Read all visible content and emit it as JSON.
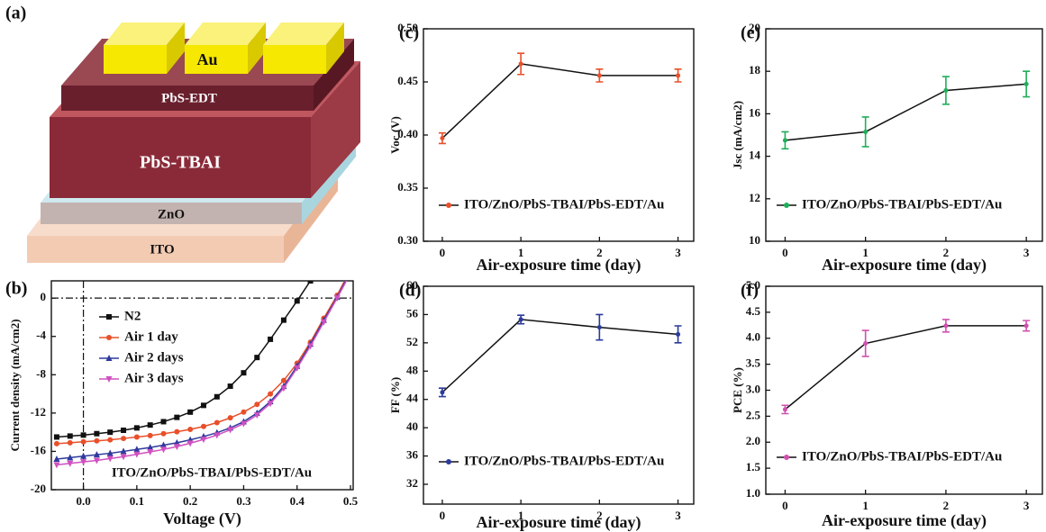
{
  "panel_a": {
    "label": "(a)",
    "layers": [
      "Au",
      "PbS-EDT",
      "PbS-TBAI",
      "ZnO",
      "ITO"
    ]
  },
  "chart_data": [
    {
      "type": "line",
      "label": "(b)",
      "xlabel": "Voltage (V)",
      "ylabel": "Current density (mA/cm2)",
      "annotation": "ITO/ZnO/PbS-TBAI/PbS-EDT/Au",
      "x": [
        -0.05,
        -0.025,
        0,
        0.025,
        0.05,
        0.075,
        0.1,
        0.125,
        0.15,
        0.175,
        0.2,
        0.225,
        0.25,
        0.275,
        0.3,
        0.325,
        0.35,
        0.375,
        0.4,
        0.425,
        0.45,
        0.475,
        0.5
      ],
      "xlim": [
        -0.06,
        0.505
      ],
      "xticks": [
        {
          "value": 0,
          "label": "0.0"
        },
        0.1,
        0.2,
        0.3,
        0.4,
        0.5
      ],
      "ylim": [
        -20,
        1.8
      ],
      "yticks": [
        0,
        -4,
        -8,
        -12,
        -16,
        -20
      ],
      "series": [
        {
          "name": "N2",
          "color": "#111111",
          "marker": "square",
          "values": [
            -14.5,
            -14.4,
            -14.3,
            -14.15,
            -14.0,
            -13.8,
            -13.55,
            -13.25,
            -12.9,
            -12.45,
            -11.9,
            -11.2,
            -10.3,
            -9.2,
            -7.8,
            -6.2,
            -4.3,
            -2.3,
            -0.3,
            1.8,
            null,
            null,
            null
          ]
        },
        {
          "name": "Air 1 day",
          "color": "#e8502a",
          "marker": "circle",
          "values": [
            -15.2,
            -15.1,
            -15.0,
            -14.9,
            -14.8,
            -14.65,
            -14.5,
            -14.35,
            -14.15,
            -13.95,
            -13.7,
            -13.4,
            -13.0,
            -12.5,
            -11.9,
            -11.1,
            -10.0,
            -8.6,
            -6.8,
            -4.6,
            -2.1,
            0.3,
            3.0
          ]
        },
        {
          "name": "Air 2 days",
          "color": "#2f3a9c",
          "marker": "triangle-up",
          "values": [
            -16.8,
            -16.65,
            -16.5,
            -16.35,
            -16.2,
            -16.0,
            -15.8,
            -15.6,
            -15.35,
            -15.1,
            -14.8,
            -14.45,
            -14.05,
            -13.55,
            -12.9,
            -12.0,
            -10.8,
            -9.2,
            -7.1,
            -4.8,
            -2.3,
            0.1,
            2.8
          ]
        },
        {
          "name": "Air 3 days",
          "color": "#d050c0",
          "marker": "triangle-down",
          "values": [
            -17.4,
            -17.25,
            -17.1,
            -16.95,
            -16.75,
            -16.55,
            -16.3,
            -16.05,
            -15.8,
            -15.5,
            -15.15,
            -14.75,
            -14.3,
            -13.75,
            -13.1,
            -12.2,
            -11.0,
            -9.4,
            -7.3,
            -5.0,
            -2.5,
            0.0,
            2.6
          ]
        }
      ]
    },
    {
      "type": "line",
      "label": "(c)",
      "xlabel": "Air-exposure time (day)",
      "ylabel": "Voc (V)",
      "x": [
        0,
        1,
        2,
        3
      ],
      "xlim": [
        -0.24,
        3.2
      ],
      "xticks": [
        0,
        1,
        2,
        3
      ],
      "ylim": [
        0.3,
        0.5
      ],
      "yticks": [
        {
          "value": 0.3,
          "label": "0.30"
        },
        0.35,
        {
          "value": 0.4,
          "label": "0.40"
        },
        0.45,
        {
          "value": 0.5,
          "label": "0.50"
        }
      ],
      "series": [
        {
          "name": "ITO/ZnO/PbS-TBAI/PbS-EDT/Au",
          "color": "#e8502a",
          "values": [
            0.397,
            0.467,
            0.456,
            0.456
          ],
          "errors": [
            0.005,
            0.01,
            0.006,
            0.006
          ]
        }
      ]
    },
    {
      "type": "line",
      "label": "(d)",
      "xlabel": "Air-exposure time (day)",
      "ylabel": "FF (%)",
      "x": [
        0,
        1,
        2,
        3
      ],
      "xlim": [
        -0.24,
        3.2
      ],
      "xticks": [
        0,
        1,
        2,
        3
      ],
      "ylim": [
        29.2,
        60
      ],
      "yticks": [
        32,
        36,
        40,
        44,
        48,
        52,
        56,
        60
      ],
      "series": [
        {
          "name": "ITO/ZnO/PbS-TBAI/PbS-EDT/Au",
          "color": "#2b3a9b",
          "values": [
            45.0,
            55.3,
            54.2,
            53.2
          ],
          "errors": [
            0.6,
            0.6,
            1.8,
            1.2
          ]
        }
      ]
    },
    {
      "type": "line",
      "label": "(e)",
      "xlabel": "Air-exposure time (day)",
      "ylabel": "Jsc (mA/cm2)",
      "x": [
        0,
        1,
        2,
        3
      ],
      "xlim": [
        -0.24,
        3.2
      ],
      "xticks": [
        0,
        1,
        2,
        3
      ],
      "ylim": [
        10,
        20
      ],
      "yticks": [
        10,
        12,
        14,
        16,
        18,
        20
      ],
      "series": [
        {
          "name": "ITO/ZnO/PbS-TBAI/PbS-EDT/Au",
          "color": "#1fae5a",
          "values": [
            14.75,
            15.15,
            17.1,
            17.4
          ],
          "errors": [
            0.4,
            0.7,
            0.65,
            0.6
          ]
        }
      ]
    },
    {
      "type": "line",
      "label": "(f)",
      "xlabel": "Air-exposure time (day)",
      "ylabel": "PCE (%)",
      "x": [
        0,
        1,
        2,
        3
      ],
      "xlim": [
        -0.24,
        3.2
      ],
      "xticks": [
        0,
        1,
        2,
        3
      ],
      "ylim": [
        1,
        5
      ],
      "yticks": [
        {
          "value": 1,
          "label": "1.0"
        },
        1.5,
        {
          "value": 2,
          "label": "2.0"
        },
        2.5,
        {
          "value": 3,
          "label": "3.0"
        },
        3.5,
        {
          "value": 4,
          "label": "4.0"
        },
        4.5,
        {
          "value": 5,
          "label": "5.0"
        }
      ],
      "series": [
        {
          "name": "ITO/ZnO/PbS-TBAI/PbS-EDT/Au",
          "color": "#d050b0",
          "values": [
            2.63,
            3.9,
            4.24,
            4.24
          ],
          "errors": [
            0.08,
            0.25,
            0.12,
            0.1
          ]
        }
      ]
    }
  ]
}
